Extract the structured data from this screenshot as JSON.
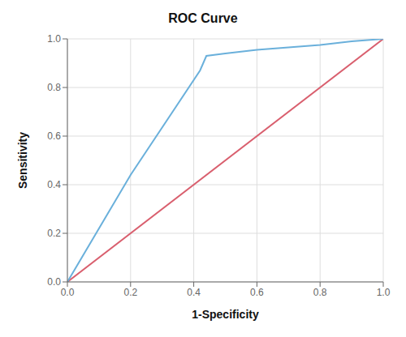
{
  "chart_data": {
    "type": "line",
    "title": "ROC Curve",
    "xlabel": "1-Specificity",
    "ylabel": "Sensitivity",
    "series": [
      {
        "color": "#d95f6e",
        "x": [
          0.0,
          1.0
        ],
        "values": [
          0.0,
          1.0
        ]
      },
      {
        "color": "#6ab0db",
        "x": [
          0.0,
          0.2,
          0.42,
          0.44,
          0.5,
          0.6,
          0.7,
          0.8,
          0.9,
          1.0
        ],
        "values": [
          0.0,
          0.44,
          0.87,
          0.93,
          0.94,
          0.955,
          0.965,
          0.975,
          0.99,
          1.0
        ]
      }
    ],
    "xlim": [
      0,
      1
    ],
    "ylim": [
      0,
      1
    ],
    "xticks": [
      {
        "value": 0,
        "label": "0.0"
      },
      0.2,
      0.4,
      0.6,
      0.8,
      {
        "value": 1,
        "label": "1.0"
      }
    ],
    "yticks": [
      {
        "value": 0,
        "label": "0.0"
      },
      0.2,
      0.4,
      0.6,
      0.8,
      {
        "value": 1,
        "label": "1.0"
      }
    ],
    "grid": true
  }
}
